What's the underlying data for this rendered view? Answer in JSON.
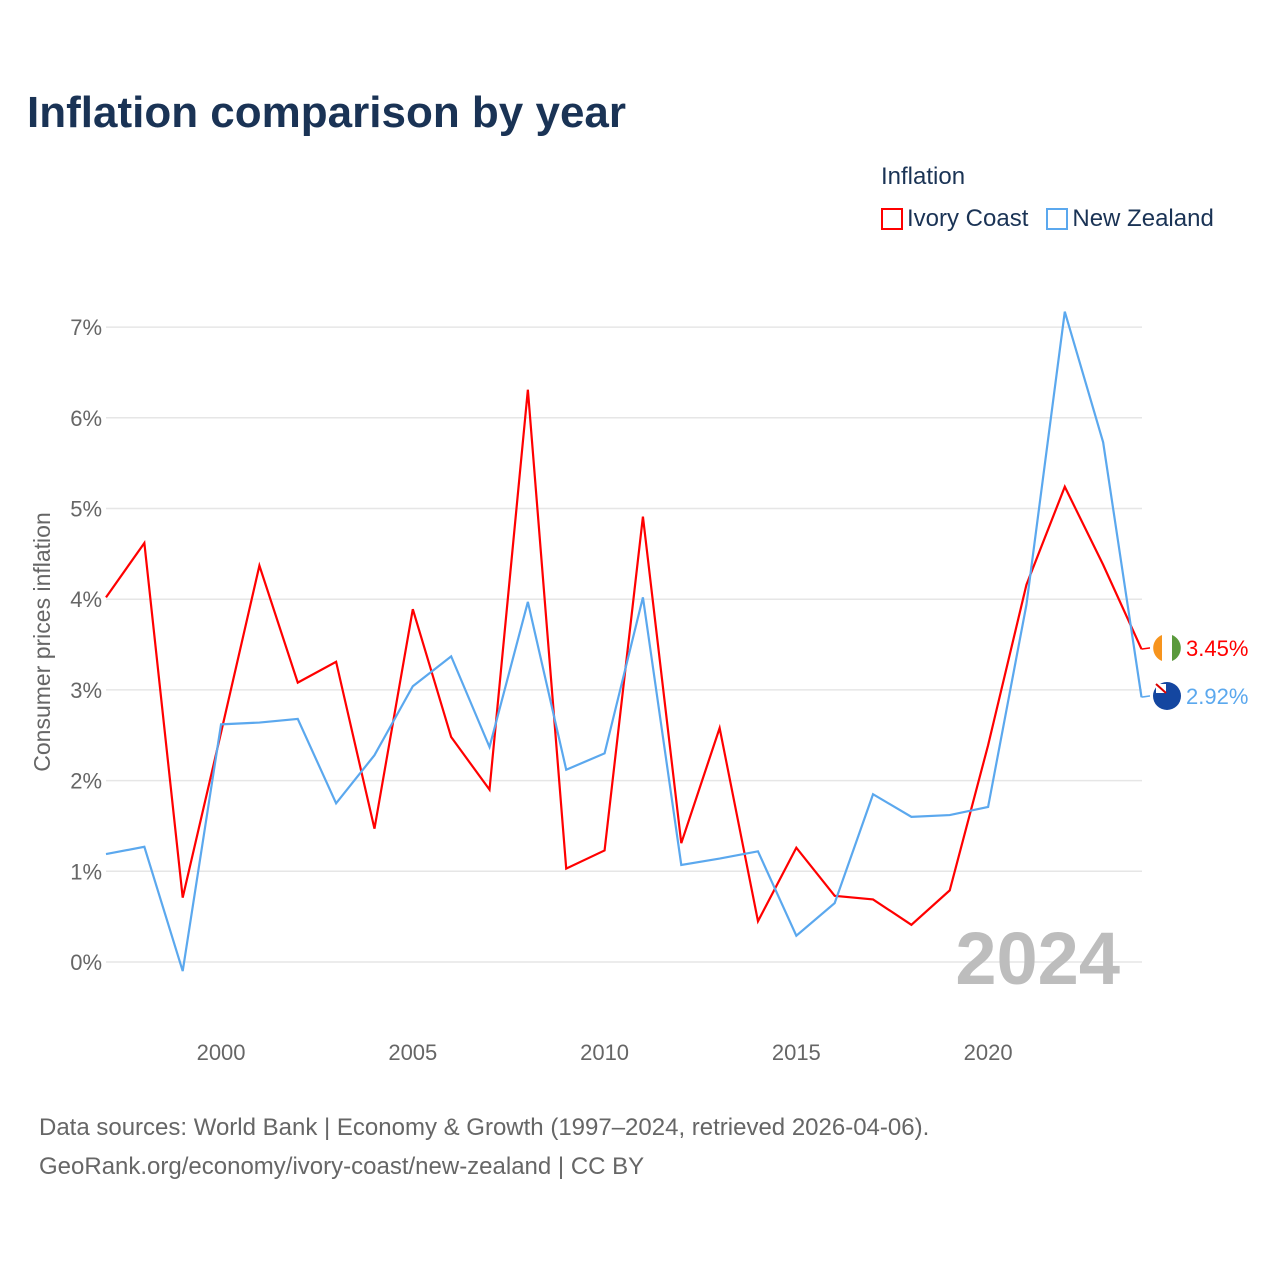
{
  "chart_data": {
    "type": "line",
    "title": "Inflation comparison by year",
    "legend_title": "Inflation",
    "legend_placement": "top-right",
    "ylabel": "Consumer prices inflation",
    "xlabel": "",
    "ylim": [
      -0.5,
      7.5
    ],
    "xlim": [
      1997,
      2024
    ],
    "yticks": [
      0,
      1,
      2,
      3,
      4,
      5,
      6,
      7
    ],
    "ytick_labels": [
      "0%",
      "1%",
      "2%",
      "3%",
      "4%",
      "5%",
      "6%",
      "7%"
    ],
    "xticks": [
      2000,
      2005,
      2010,
      2015,
      2020
    ],
    "xtick_labels": [
      "2000",
      "2005",
      "2010",
      "2015",
      "2020"
    ],
    "grid": true,
    "year_watermark": "2024",
    "x": [
      1997,
      1998,
      1999,
      2000,
      2001,
      2002,
      2003,
      2004,
      2005,
      2006,
      2007,
      2008,
      2009,
      2010,
      2011,
      2012,
      2013,
      2014,
      2015,
      2016,
      2017,
      2018,
      2019,
      2020,
      2021,
      2022,
      2023,
      2024
    ],
    "series": [
      {
        "name": "Ivory Coast",
        "color": "#ff0000",
        "end_label": "3.45%",
        "values": [
          4.02,
          4.62,
          0.71,
          2.53,
          4.37,
          3.08,
          3.31,
          1.47,
          3.89,
          2.48,
          1.9,
          6.31,
          1.03,
          1.23,
          4.91,
          1.31,
          2.58,
          0.45,
          1.26,
          0.73,
          0.69,
          0.41,
          0.79,
          2.39,
          4.16,
          5.24,
          4.38,
          3.45
        ]
      },
      {
        "name": "New Zealand",
        "color": "#5ba8ee",
        "end_label": "2.92%",
        "values": [
          1.19,
          1.27,
          -0.1,
          2.62,
          2.64,
          2.68,
          1.75,
          2.28,
          3.04,
          3.37,
          2.37,
          3.97,
          2.12,
          2.3,
          4.02,
          1.07,
          1.14,
          1.22,
          0.29,
          0.65,
          1.85,
          1.6,
          1.62,
          1.71,
          3.94,
          7.17,
          5.73,
          2.92
        ]
      }
    ]
  },
  "source": {
    "line1": "Data sources: World Bank | Economy & Growth (1997–2024, retrieved 2026-04-06).",
    "line2": "GeoRank.org/economy/ivory-coast/new-zealand | CC BY"
  }
}
